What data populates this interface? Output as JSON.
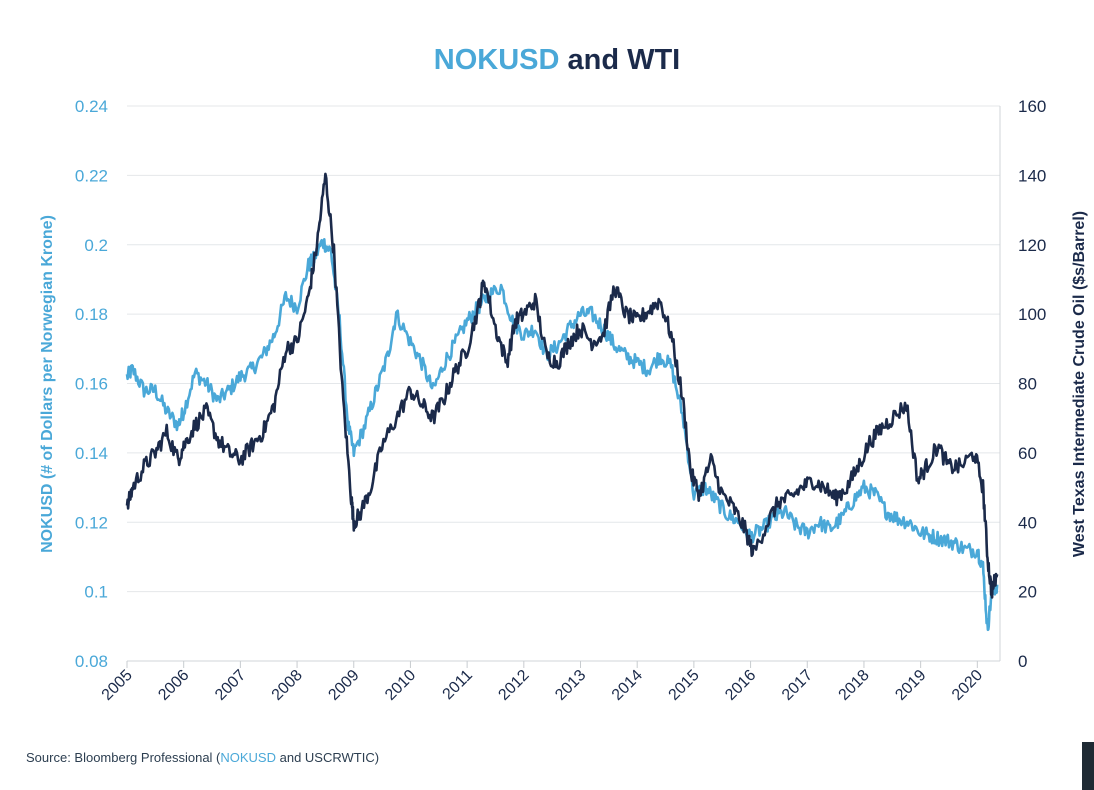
{
  "colors": {
    "nokusd": "#4aa8d8",
    "wti": "#1b2a4a",
    "grid": "#e4e7ea",
    "text_dark": "#1b2a4a",
    "axis_light": "#4aa8d8"
  },
  "source": {
    "prefix": "Source: Bloomberg Professional (",
    "nok": "NOKUSD",
    "suffix": " and USCRWTIC)"
  },
  "chart_data": {
    "type": "line",
    "title_part1": "NOKUSD",
    "title_part2": " and WTI",
    "ylabel_left": "NOKUSD (# of Dollars per Norwegian Krone)",
    "ylabel_right": "West Texas Intermediate Crude Oil ($s/Barrel)",
    "ylim_left": [
      0.08,
      0.24
    ],
    "ylim_right": [
      0,
      160
    ],
    "yticks_left": [
      "0.08",
      "0.1",
      "0.12",
      "0.14",
      "0.16",
      "0.18",
      "0.2",
      "0.22",
      "0.24"
    ],
    "yticks_right": [
      "0",
      "20",
      "40",
      "60",
      "80",
      "100",
      "120",
      "140",
      "160"
    ],
    "xlim": [
      2005,
      2020.4
    ],
    "xticks": [
      "2005",
      "2006",
      "2007",
      "2008",
      "2009",
      "2010",
      "2011",
      "2012",
      "2013",
      "2014",
      "2015",
      "2016",
      "2017",
      "2018",
      "2019",
      "2020"
    ],
    "grid": true,
    "series": [
      {
        "name": "NOKUSD",
        "axis": "left",
        "x": [
          2005.0,
          2005.1,
          2005.3,
          2005.5,
          2005.7,
          2005.9,
          2006.0,
          2006.2,
          2006.4,
          2006.6,
          2006.8,
          2007.0,
          2007.2,
          2007.4,
          2007.6,
          2007.8,
          2008.0,
          2008.2,
          2008.3,
          2008.45,
          2008.6,
          2008.75,
          2008.9,
          2009.0,
          2009.2,
          2009.4,
          2009.6,
          2009.75,
          2010.0,
          2010.2,
          2010.4,
          2010.6,
          2010.8,
          2011.0,
          2011.2,
          2011.35,
          2011.6,
          2011.8,
          2012.0,
          2012.2,
          2012.4,
          2012.6,
          2012.8,
          2013.0,
          2013.2,
          2013.4,
          2013.6,
          2013.8,
          2014.0,
          2014.2,
          2014.4,
          2014.6,
          2014.8,
          2015.0,
          2015.2,
          2015.4,
          2015.6,
          2015.8,
          2016.0,
          2016.2,
          2016.4,
          2016.6,
          2016.8,
          2017.0,
          2017.2,
          2017.4,
          2017.6,
          2017.8,
          2018.0,
          2018.2,
          2018.4,
          2018.6,
          2018.8,
          2019.0,
          2019.2,
          2019.4,
          2019.6,
          2019.8,
          2020.0,
          2020.1,
          2020.18,
          2020.25,
          2020.35
        ],
        "values": [
          0.162,
          0.164,
          0.158,
          0.158,
          0.152,
          0.148,
          0.152,
          0.163,
          0.16,
          0.155,
          0.158,
          0.162,
          0.164,
          0.168,
          0.174,
          0.185,
          0.182,
          0.194,
          0.196,
          0.201,
          0.198,
          0.178,
          0.148,
          0.14,
          0.148,
          0.158,
          0.168,
          0.18,
          0.172,
          0.166,
          0.158,
          0.166,
          0.172,
          0.178,
          0.182,
          0.185,
          0.188,
          0.178,
          0.174,
          0.176,
          0.168,
          0.171,
          0.176,
          0.18,
          0.18,
          0.176,
          0.171,
          0.168,
          0.166,
          0.164,
          0.168,
          0.165,
          0.151,
          0.128,
          0.13,
          0.126,
          0.122,
          0.12,
          0.116,
          0.118,
          0.121,
          0.123,
          0.119,
          0.117,
          0.12,
          0.118,
          0.121,
          0.126,
          0.13,
          0.128,
          0.123,
          0.121,
          0.12,
          0.117,
          0.116,
          0.115,
          0.114,
          0.112,
          0.112,
          0.107,
          0.089,
          0.099,
          0.102
        ]
      },
      {
        "name": "WTI",
        "axis": "right",
        "x": [
          2005.0,
          2005.1,
          2005.3,
          2005.5,
          2005.7,
          2005.9,
          2006.0,
          2006.2,
          2006.4,
          2006.6,
          2006.8,
          2007.0,
          2007.2,
          2007.4,
          2007.6,
          2007.8,
          2008.0,
          2008.2,
          2008.35,
          2008.5,
          2008.65,
          2008.8,
          2008.95,
          2009.0,
          2009.1,
          2009.3,
          2009.5,
          2009.75,
          2010.0,
          2010.2,
          2010.4,
          2010.6,
          2010.8,
          2011.0,
          2011.2,
          2011.3,
          2011.5,
          2011.7,
          2011.85,
          2012.0,
          2012.2,
          2012.4,
          2012.6,
          2012.8,
          2013.0,
          2013.2,
          2013.4,
          2013.6,
          2013.8,
          2014.0,
          2014.2,
          2014.4,
          2014.6,
          2014.8,
          2014.95,
          2015.1,
          2015.3,
          2015.5,
          2015.7,
          2015.9,
          2016.05,
          2016.3,
          2016.5,
          2016.7,
          2016.9,
          2017.1,
          2017.3,
          2017.5,
          2017.7,
          2017.9,
          2018.1,
          2018.3,
          2018.5,
          2018.75,
          2018.95,
          2019.1,
          2019.3,
          2019.5,
          2019.7,
          2019.95,
          2020.1,
          2020.18,
          2020.25,
          2020.35
        ],
        "values": [
          44,
          50,
          56,
          60,
          66,
          58,
          62,
          68,
          72,
          64,
          60,
          58,
          62,
          66,
          74,
          90,
          92,
          105,
          120,
          140,
          118,
          78,
          48,
          40,
          42,
          50,
          62,
          70,
          78,
          74,
          70,
          76,
          84,
          90,
          102,
          110,
          96,
          86,
          98,
          100,
          104,
          88,
          86,
          92,
          96,
          92,
          94,
          108,
          100,
          98,
          101,
          104,
          94,
          76,
          54,
          48,
          58,
          48,
          44,
          38,
          31,
          40,
          46,
          47,
          50,
          52,
          50,
          47,
          50,
          56,
          63,
          67,
          70,
          74,
          52,
          56,
          62,
          56,
          56,
          60,
          50,
          30,
          20,
          25
        ]
      }
    ]
  }
}
